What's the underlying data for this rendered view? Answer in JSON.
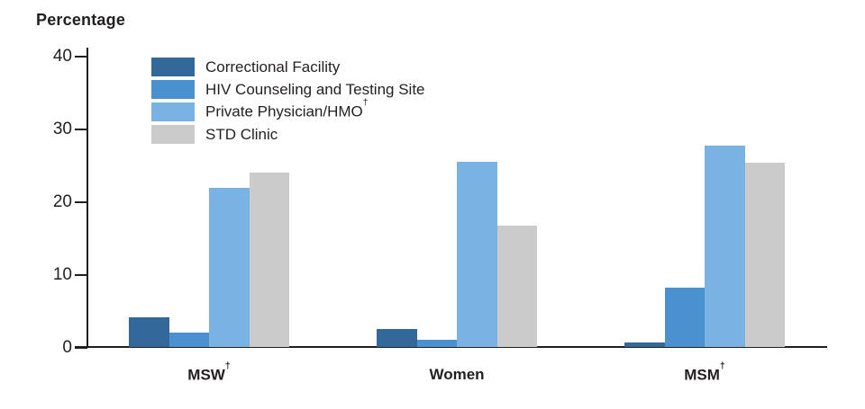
{
  "chart_data": {
    "type": "bar",
    "title": "",
    "ylabel": "Percentage",
    "xlabel": "",
    "ylim": [
      0,
      40
    ],
    "yticks": [
      0,
      10,
      20,
      30,
      40
    ],
    "grid": false,
    "legend_position": "top-left-inside",
    "categories": [
      "MSW†",
      "Women",
      "MSM†"
    ],
    "series": [
      {
        "name": "Correctional Facility",
        "color": "#33689B",
        "values": [
          4.1,
          2.5,
          0.6
        ]
      },
      {
        "name": "HIV Counseling and Testing Site",
        "color": "#4B91CF",
        "values": [
          2.0,
          1.0,
          8.1
        ]
      },
      {
        "name": "Private Physician/HMO†",
        "color": "#79B3E3",
        "values": [
          21.8,
          25.4,
          27.7
        ]
      },
      {
        "name": "STD Clinic",
        "color": "#CBCBCB",
        "values": [
          24.0,
          16.7,
          25.3
        ]
      }
    ]
  },
  "colors": {
    "axis": "#231f20",
    "text": "#231f20",
    "background": "#ffffff"
  }
}
